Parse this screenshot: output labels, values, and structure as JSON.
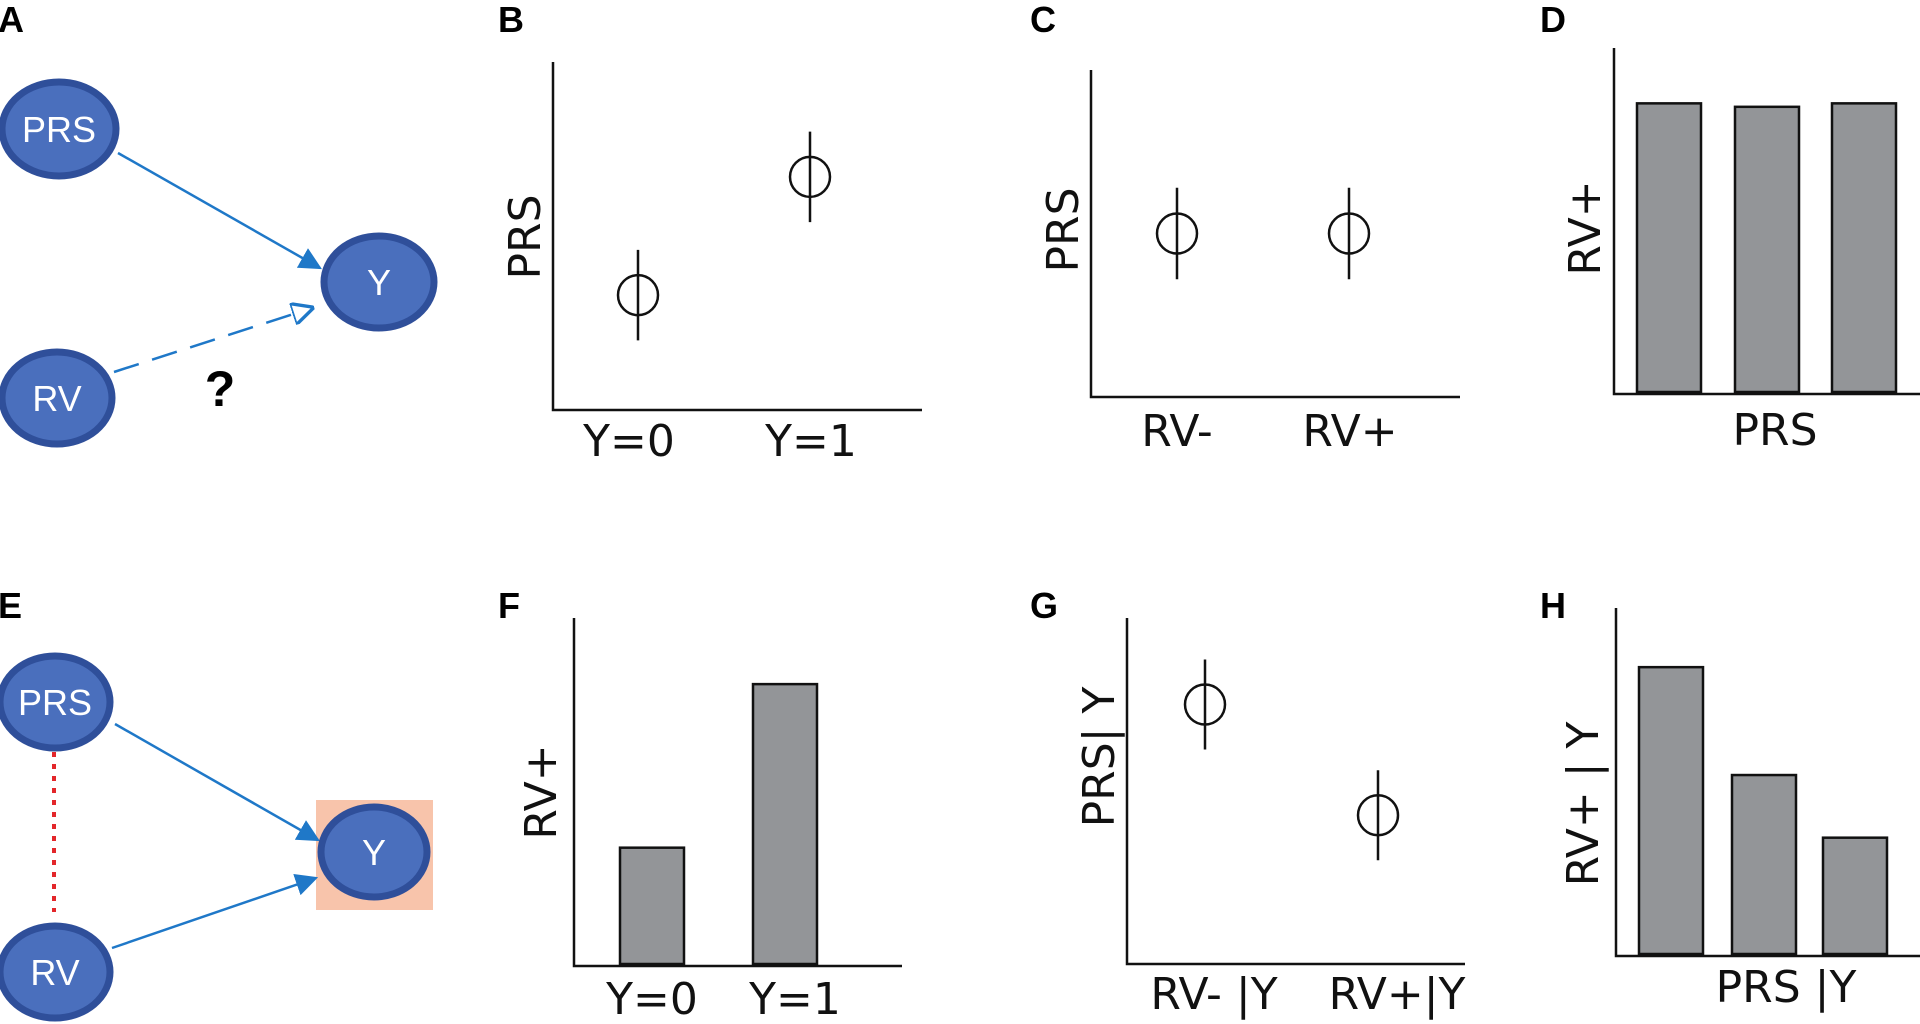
{
  "colors": {
    "node_fill": "#4a6fbd",
    "node_stroke": "#2f4f9a",
    "arrow": "#1f78c8",
    "bar_fill": "#939598",
    "highlight": "#f8c4ab",
    "red_dotted": "#e3262a"
  },
  "panels": {
    "A": {
      "letter": "A",
      "nodes": {
        "prs": "PRS",
        "y": "Y",
        "rv": "RV"
      },
      "question": "?"
    },
    "B": {
      "letter": "B",
      "ylabel": "PRS",
      "xlabel_left": "Y=0",
      "xlabel_right": "Y=1"
    },
    "C": {
      "letter": "C",
      "ylabel": "PRS",
      "xlabel_left": "RV-",
      "xlabel_right": "RV+"
    },
    "D": {
      "letter": "D",
      "ylabel": "RV+",
      "xlabel": "PRS"
    },
    "E": {
      "letter": "E",
      "nodes": {
        "prs": "PRS",
        "y": "Y",
        "rv": "RV"
      }
    },
    "F": {
      "letter": "F",
      "ylabel": "RV+",
      "xlabel_left": "Y=0",
      "xlabel_right": "Y=1"
    },
    "G": {
      "letter": "G",
      "ylabel": "PRS| Y",
      "xlabel_left": "RV- |Y",
      "xlabel_right": "RV+|Y"
    },
    "H": {
      "letter": "H",
      "ylabel": "RV+ | Y",
      "xlabel": "PRS |Y"
    }
  },
  "chart_data": [
    {
      "panel": "B",
      "type": "scatter",
      "ylabel": "PRS",
      "categories": [
        "Y=0",
        "Y=1"
      ],
      "ylim": [
        0,
        10
      ],
      "values": [
        3.3,
        6.7
      ],
      "error": [
        1.3,
        1.3
      ]
    },
    {
      "panel": "C",
      "type": "scatter",
      "ylabel": "PRS",
      "categories": [
        "RV-",
        "RV+"
      ],
      "ylim": [
        0,
        10
      ],
      "values": [
        5.0,
        5.0
      ],
      "error": [
        1.4,
        1.4
      ]
    },
    {
      "panel": "D",
      "type": "bar",
      "ylabel": "RV+",
      "xlabel": "PRS",
      "categories": [
        "",
        "",
        ""
      ],
      "ylim": [
        0,
        10
      ],
      "values": [
        8.4,
        8.3,
        8.4
      ]
    },
    {
      "panel": "F",
      "type": "bar",
      "ylabel": "RV+",
      "categories": [
        "Y=0",
        "Y=1"
      ],
      "ylim": [
        0,
        10
      ],
      "values": [
        3.4,
        8.1
      ]
    },
    {
      "panel": "G",
      "type": "scatter",
      "ylabel": "PRS| Y",
      "categories": [
        "RV- |Y",
        "RV+|Y"
      ],
      "ylim": [
        0,
        10
      ],
      "values": [
        7.5,
        4.3
      ],
      "error": [
        1.3,
        1.3
      ]
    },
    {
      "panel": "H",
      "type": "bar",
      "ylabel": "RV+ | Y",
      "xlabel": "PRS |Y",
      "categories": [
        "",
        "",
        ""
      ],
      "ylim": [
        0,
        10
      ],
      "values": [
        8.3,
        5.2,
        3.4
      ]
    }
  ]
}
